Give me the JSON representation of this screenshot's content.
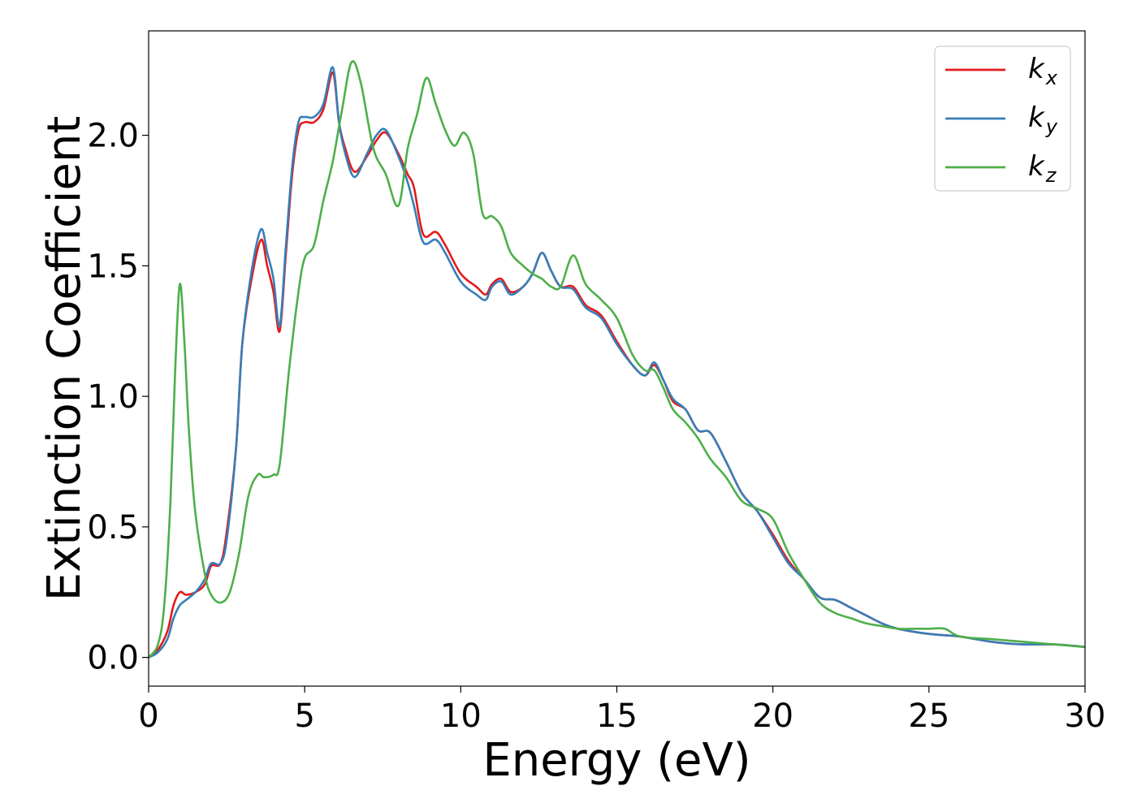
{
  "chart_data": {
    "type": "line",
    "title": "",
    "xlabel": "Energy (eV)",
    "ylabel": "Extinction Coefficient",
    "xlim": [
      0,
      30
    ],
    "ylim": [
      -0.11,
      2.4
    ],
    "xticks": [
      0,
      5,
      10,
      15,
      20,
      25,
      30
    ],
    "xtick_labels": [
      "0",
      "5",
      "10",
      "15",
      "20",
      "25",
      "30"
    ],
    "yticks": [
      0.0,
      0.5,
      1.0,
      1.5,
      2.0
    ],
    "ytick_labels": [
      "0.0",
      "0.5",
      "1.0",
      "1.5",
      "2.0"
    ],
    "grid": false,
    "legend_position": "top-right",
    "series": [
      {
        "name": "k",
        "subscript": "x",
        "color": "#e41a1c",
        "x": [
          0,
          0.3,
          0.6,
          0.8,
          1.0,
          1.2,
          1.5,
          1.8,
          2.0,
          2.3,
          2.5,
          2.8,
          3.0,
          3.3,
          3.6,
          3.8,
          4.0,
          4.2,
          4.4,
          4.6,
          4.8,
          5.0,
          5.3,
          5.6,
          5.9,
          6.1,
          6.3,
          6.6,
          7.0,
          7.3,
          7.6,
          8.0,
          8.3,
          8.5,
          8.8,
          9.2,
          9.5,
          10.0,
          10.5,
          10.8,
          11.0,
          11.3,
          11.6,
          12.0,
          12.3,
          12.6,
          12.9,
          13.2,
          13.6,
          14.0,
          14.5,
          15.0,
          15.5,
          15.9,
          16.2,
          16.5,
          16.8,
          17.2,
          17.6,
          18.0,
          18.5,
          19.0,
          19.5,
          20.0,
          20.5,
          21.0,
          21.5,
          22.0,
          22.5,
          23.0,
          23.5,
          24.0,
          25.0,
          26.0,
          27.0,
          28.0,
          29.0,
          30.0
        ],
        "y": [
          0.0,
          0.03,
          0.1,
          0.2,
          0.25,
          0.24,
          0.25,
          0.28,
          0.35,
          0.36,
          0.48,
          0.8,
          1.2,
          1.45,
          1.6,
          1.5,
          1.4,
          1.25,
          1.55,
          1.85,
          2.02,
          2.05,
          2.05,
          2.1,
          2.24,
          2.05,
          1.95,
          1.86,
          1.92,
          1.98,
          2.01,
          1.93,
          1.85,
          1.8,
          1.62,
          1.63,
          1.58,
          1.47,
          1.42,
          1.39,
          1.43,
          1.45,
          1.4,
          1.42,
          1.47,
          1.55,
          1.48,
          1.42,
          1.42,
          1.35,
          1.31,
          1.21,
          1.12,
          1.08,
          1.12,
          1.06,
          0.98,
          0.95,
          0.87,
          0.86,
          0.75,
          0.63,
          0.56,
          0.47,
          0.37,
          0.3,
          0.23,
          0.22,
          0.19,
          0.16,
          0.13,
          0.11,
          0.09,
          0.08,
          0.06,
          0.05,
          0.05,
          0.04
        ]
      },
      {
        "name": "k",
        "subscript": "y",
        "color": "#377eb8",
        "x": [
          0,
          0.3,
          0.6,
          0.8,
          1.0,
          1.2,
          1.5,
          1.8,
          2.0,
          2.3,
          2.5,
          2.8,
          3.0,
          3.3,
          3.6,
          3.8,
          4.0,
          4.2,
          4.4,
          4.6,
          4.8,
          5.0,
          5.3,
          5.6,
          5.9,
          6.1,
          6.3,
          6.6,
          7.0,
          7.3,
          7.6,
          8.0,
          8.3,
          8.5,
          8.8,
          9.2,
          9.5,
          10.0,
          10.5,
          10.8,
          11.0,
          11.3,
          11.6,
          12.0,
          12.3,
          12.6,
          12.9,
          13.2,
          13.6,
          14.0,
          14.5,
          15.0,
          15.5,
          15.9,
          16.2,
          16.5,
          16.8,
          17.2,
          17.6,
          18.0,
          18.5,
          19.0,
          19.5,
          20.0,
          20.5,
          21.0,
          21.5,
          22.0,
          22.5,
          23.0,
          23.5,
          24.0,
          25.0,
          26.0,
          27.0,
          28.0,
          29.0,
          30.0
        ],
        "y": [
          0.0,
          0.02,
          0.07,
          0.15,
          0.2,
          0.22,
          0.25,
          0.3,
          0.36,
          0.36,
          0.45,
          0.8,
          1.2,
          1.48,
          1.64,
          1.55,
          1.45,
          1.27,
          1.58,
          1.88,
          2.05,
          2.07,
          2.07,
          2.12,
          2.26,
          2.05,
          1.93,
          1.84,
          1.93,
          2.0,
          2.02,
          1.92,
          1.82,
          1.73,
          1.59,
          1.6,
          1.55,
          1.44,
          1.39,
          1.37,
          1.42,
          1.44,
          1.39,
          1.42,
          1.47,
          1.55,
          1.48,
          1.42,
          1.41,
          1.34,
          1.3,
          1.2,
          1.12,
          1.08,
          1.13,
          1.06,
          0.99,
          0.95,
          0.87,
          0.86,
          0.75,
          0.63,
          0.56,
          0.46,
          0.36,
          0.3,
          0.23,
          0.22,
          0.19,
          0.16,
          0.13,
          0.11,
          0.09,
          0.08,
          0.06,
          0.05,
          0.05,
          0.04
        ]
      },
      {
        "name": "k",
        "subscript": "z",
        "color": "#4daf4a",
        "x": [
          0,
          0.3,
          0.5,
          0.7,
          0.85,
          1.0,
          1.15,
          1.3,
          1.5,
          1.8,
          2.0,
          2.3,
          2.6,
          2.9,
          3.2,
          3.5,
          3.7,
          4.0,
          4.2,
          4.5,
          4.8,
          5.0,
          5.3,
          5.6,
          5.9,
          6.2,
          6.5,
          6.8,
          7.2,
          7.6,
          8.0,
          8.3,
          8.6,
          8.9,
          9.2,
          9.5,
          9.8,
          10.1,
          10.4,
          10.7,
          11.0,
          11.3,
          11.6,
          12.0,
          12.3,
          12.6,
          12.9,
          13.2,
          13.6,
          14.0,
          14.5,
          15.0,
          15.5,
          15.9,
          16.2,
          16.5,
          16.8,
          17.2,
          17.6,
          18.0,
          18.5,
          19.0,
          19.5,
          20.0,
          20.5,
          21.0,
          21.5,
          22.0,
          22.5,
          23.0,
          23.5,
          24.0,
          24.5,
          25.0,
          25.5,
          26.0,
          27.0,
          28.0,
          29.0,
          30.0
        ],
        "y": [
          0.0,
          0.05,
          0.2,
          0.6,
          1.1,
          1.43,
          1.2,
          0.85,
          0.55,
          0.32,
          0.24,
          0.21,
          0.25,
          0.4,
          0.62,
          0.7,
          0.69,
          0.7,
          0.74,
          1.1,
          1.4,
          1.53,
          1.58,
          1.75,
          1.9,
          2.1,
          2.28,
          2.2,
          1.95,
          1.85,
          1.73,
          1.95,
          2.08,
          2.22,
          2.12,
          2.02,
          1.96,
          2.01,
          1.93,
          1.7,
          1.69,
          1.65,
          1.55,
          1.5,
          1.47,
          1.45,
          1.42,
          1.42,
          1.54,
          1.43,
          1.37,
          1.3,
          1.16,
          1.1,
          1.1,
          1.03,
          0.95,
          0.9,
          0.84,
          0.76,
          0.69,
          0.6,
          0.57,
          0.53,
          0.4,
          0.3,
          0.21,
          0.17,
          0.15,
          0.13,
          0.12,
          0.11,
          0.11,
          0.11,
          0.11,
          0.08,
          0.07,
          0.06,
          0.05,
          0.04
        ]
      }
    ]
  }
}
